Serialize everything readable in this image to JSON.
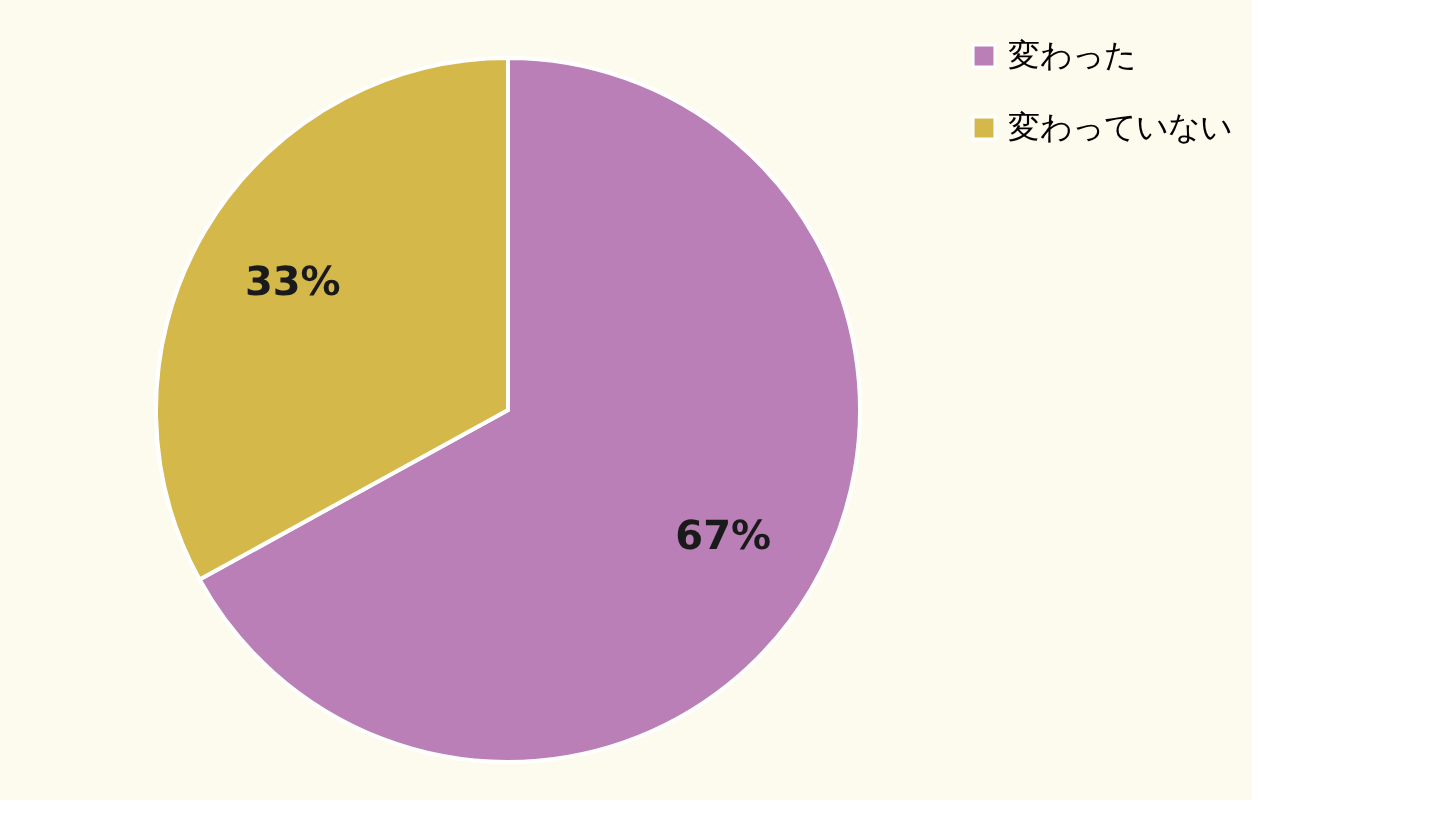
{
  "chart_data": {
    "type": "pie",
    "categories": [
      "変わった",
      "変わっていない"
    ],
    "values": [
      67,
      33
    ],
    "colors": [
      "#b97fb6",
      "#d4b84a"
    ],
    "value_labels": [
      "67%",
      "33%"
    ],
    "legend": "right"
  }
}
